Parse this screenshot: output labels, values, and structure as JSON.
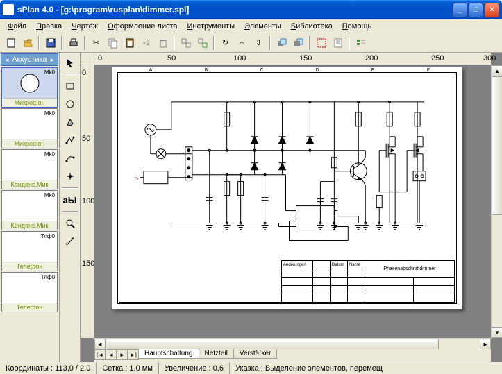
{
  "window": {
    "title": "sPlan 4.0 - [g:\\program\\rusplan\\dimmer.spl]"
  },
  "menu": [
    {
      "label": "Файл",
      "ul": "Ф"
    },
    {
      "label": "Правка",
      "ul": "П"
    },
    {
      "label": "Чертёж",
      "ul": "Ч"
    },
    {
      "label": "Оформление листа",
      "ul": "О"
    },
    {
      "label": "Инструменты",
      "ul": "И"
    },
    {
      "label": "Элементы",
      "ul": "Э"
    },
    {
      "label": "Библиотека",
      "ul": "Б"
    },
    {
      "label": "Помощь",
      "ul": "П"
    }
  ],
  "palette": {
    "category": "Аккустика",
    "items": [
      {
        "ref": "Mk0",
        "label": "Микрофон",
        "sym": "circle-big",
        "sel": true
      },
      {
        "ref": "Mk0",
        "label": "Микрофон",
        "sym": "circle"
      },
      {
        "ref": "Mk0",
        "label": "Конденс.Мик",
        "sym": "cap-circ"
      },
      {
        "ref": "Mk0",
        "label": "Конденс.Мик",
        "sym": "cap-circ2"
      },
      {
        "ref": "Тлф0",
        "label": "Телефон",
        "sym": "phone"
      },
      {
        "ref": "Тлф0",
        "label": "Телефон",
        "sym": "phone2"
      }
    ]
  },
  "ruler_h": [
    {
      "v": "0",
      "p": 5
    },
    {
      "v": "50",
      "p": 105
    },
    {
      "v": "100",
      "p": 200
    },
    {
      "v": "150",
      "p": 295
    },
    {
      "v": "200",
      "p": 390
    },
    {
      "v": "250",
      "p": 485
    },
    {
      "v": "300",
      "p": 560
    }
  ],
  "ruler_v": [
    {
      "v": "0",
      "p": 5
    },
    {
      "v": "50",
      "p": 100
    },
    {
      "v": "100",
      "p": 190
    },
    {
      "v": "150",
      "p": 280
    }
  ],
  "columns": [
    "A",
    "B",
    "C",
    "D",
    "E",
    "F"
  ],
  "tabs": [
    {
      "label": "Hauptschaltung",
      "active": true
    },
    {
      "label": "Netzteil",
      "active": false
    },
    {
      "label": "Verstärker",
      "active": false
    }
  ],
  "titleblock": {
    "r1": [
      "Änderungen",
      "",
      "Datum",
      "Name",
      "",
      ""
    ],
    "r2c": "Phasenabschnittdimmer",
    "r3": [
      "",
      "",
      "",
      "",
      "",
      ""
    ]
  },
  "status": {
    "coords_label": "Координаты :",
    "coords": "113,0 / 2,0",
    "grid_label": "Сетка :",
    "grid": "1,0 мм",
    "zoom_label": "Увеличение :",
    "zoom": "0,6",
    "hint_label": "Указка :",
    "hint": "Выделение элементов, перемещ"
  },
  "colors": {
    "accent": "#316ac5",
    "red": "#c00000",
    "bg": "#ece9d8"
  }
}
